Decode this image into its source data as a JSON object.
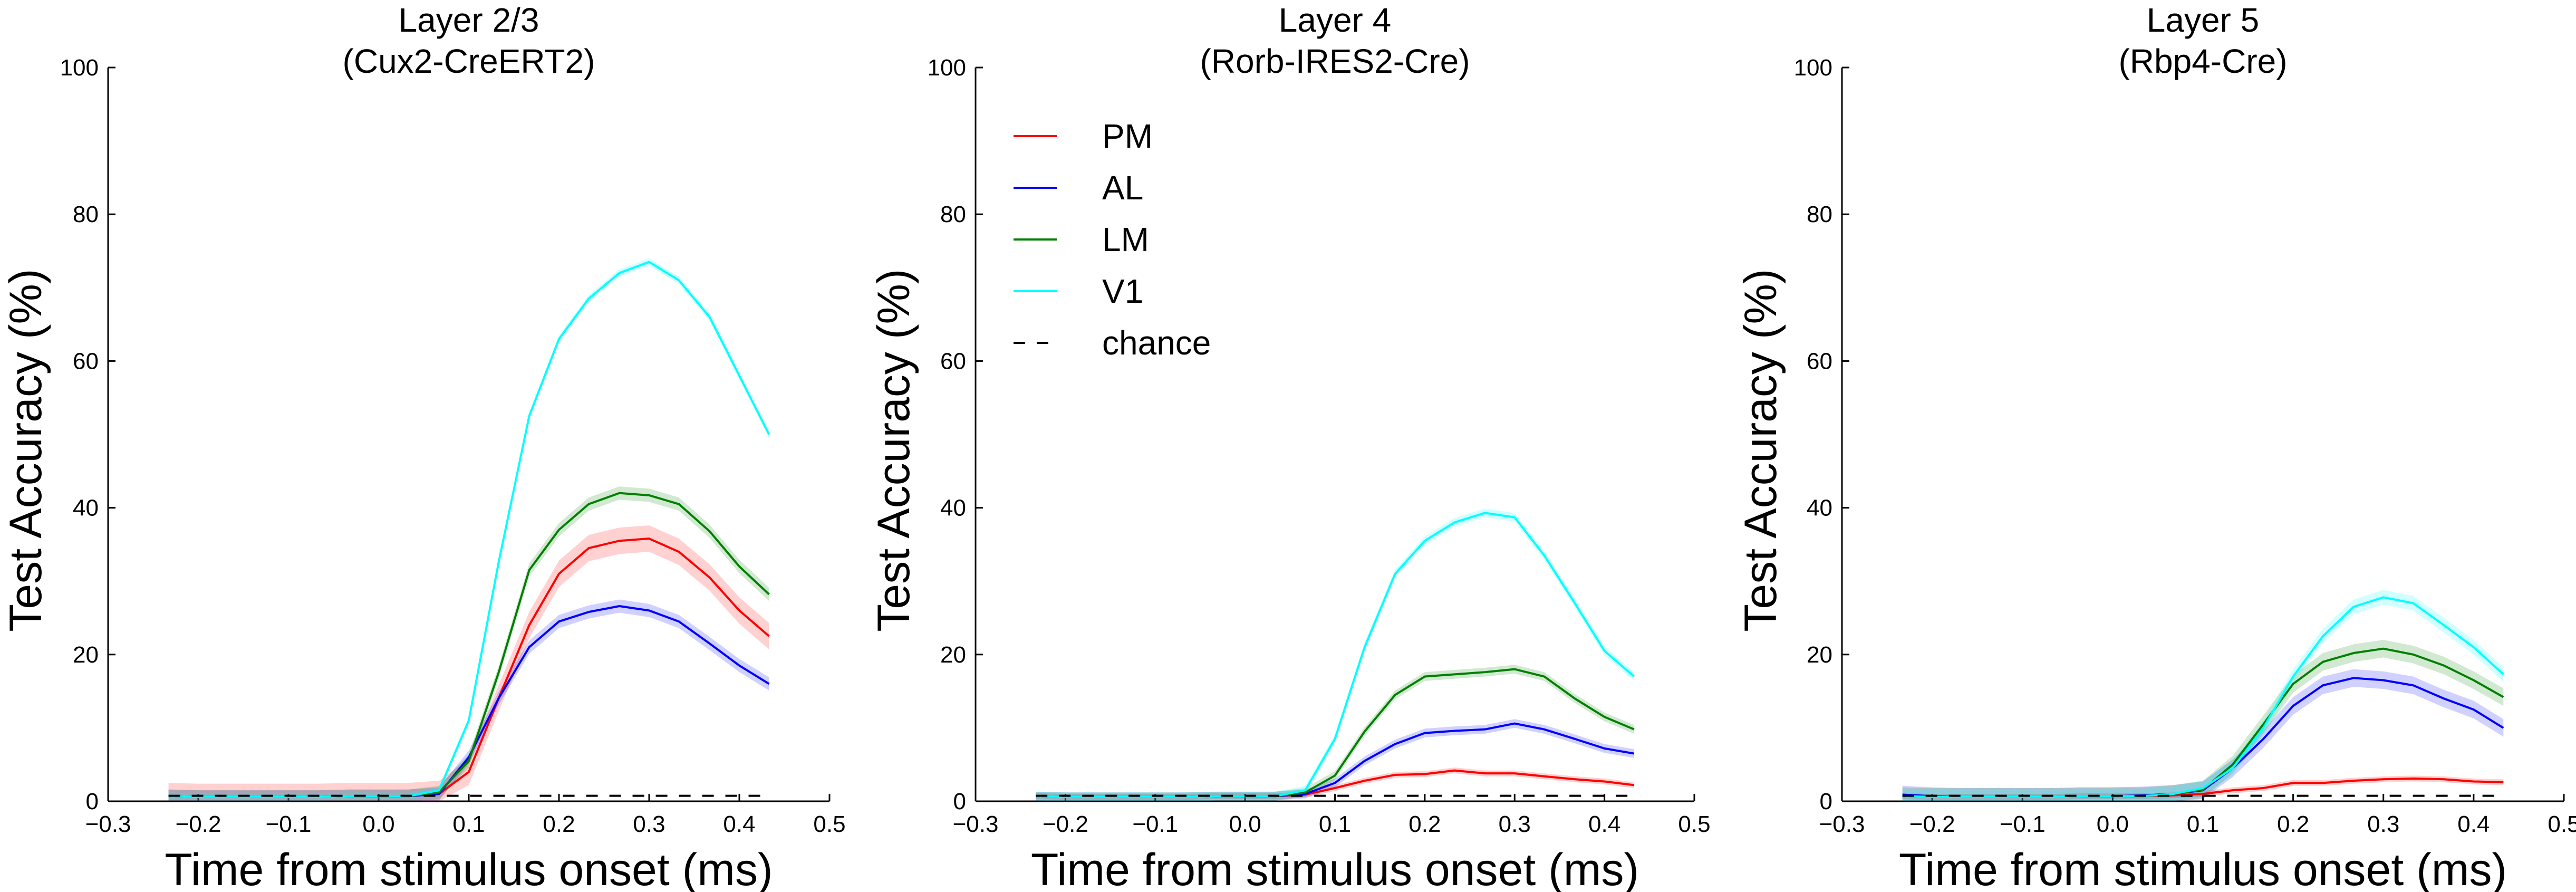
{
  "colors": {
    "PM": "#ff0000",
    "AL": "#0000ff",
    "LM": "#008000",
    "V1": "#00ffff",
    "chance": "#000000"
  },
  "chart_data": [
    {
      "type": "line",
      "title": "Layer 2/3\n(Cux2-CreERT2)",
      "xlabel": "Time from stimulus onset (ms)",
      "ylabel": "Test Accuracy (%)",
      "xlim": [
        -0.3,
        0.5
      ],
      "ylim": [
        0,
        100
      ],
      "xticks": [
        "−0.3",
        "−0.2",
        "−0.1",
        "0.0",
        "0.1",
        "0.2",
        "0.3",
        "0.4",
        "0.5"
      ],
      "yticks": [
        "0",
        "20",
        "40",
        "60",
        "80",
        "100"
      ],
      "x": [
        -0.233,
        -0.2,
        -0.167,
        -0.133,
        -0.1,
        -0.067,
        -0.033,
        0.0,
        0.033,
        0.067,
        0.1,
        0.133,
        0.167,
        0.2,
        0.233,
        0.267,
        0.3,
        0.333,
        0.367,
        0.4,
        0.433
      ],
      "series": [
        {
          "name": "PM",
          "color": "#ff0000",
          "values": [
            0.7,
            0.6,
            0.6,
            0.6,
            0.6,
            0.6,
            0.7,
            0.7,
            0.7,
            1.0,
            4.0,
            14.0,
            24.0,
            31.0,
            34.5,
            35.5,
            35.8,
            34.0,
            30.5,
            26.0,
            22.5
          ],
          "band": 1.8
        },
        {
          "name": "AL",
          "color": "#0000ff",
          "values": [
            0.7,
            0.6,
            0.6,
            0.6,
            0.6,
            0.6,
            0.7,
            0.7,
            0.7,
            1.0,
            6.0,
            14.0,
            21.0,
            24.5,
            25.8,
            26.6,
            26.0,
            24.5,
            21.5,
            18.5,
            16.0
          ],
          "band": 0.9
        },
        {
          "name": "LM",
          "color": "#008000",
          "values": [
            0.7,
            0.6,
            0.6,
            0.6,
            0.6,
            0.6,
            0.7,
            0.7,
            0.7,
            1.2,
            5.5,
            17.5,
            31.5,
            37.0,
            40.5,
            42.0,
            41.7,
            40.5,
            36.8,
            32.0,
            28.2
          ],
          "band": 0.9
        },
        {
          "name": "V1",
          "color": "#00ffff",
          "values": [
            0.7,
            0.6,
            0.6,
            0.6,
            0.6,
            0.6,
            0.7,
            0.7,
            0.7,
            1.5,
            11.0,
            32.5,
            52.5,
            63.0,
            68.5,
            72.0,
            73.5,
            71.0,
            66.0,
            58.0,
            50.0
          ],
          "band": 0.5
        },
        {
          "name": "chance",
          "color": "#000000",
          "dashed": true,
          "values": [
            0.75,
            0.75,
            0.75,
            0.75,
            0.75,
            0.75,
            0.75,
            0.75,
            0.75,
            0.75,
            0.75,
            0.75,
            0.75,
            0.75,
            0.75,
            0.75,
            0.75,
            0.75,
            0.75,
            0.75,
            0.75
          ]
        }
      ]
    },
    {
      "type": "line",
      "title": "Layer 4\n(Rorb-IRES2-Cre)",
      "xlabel": "Time from stimulus onset (ms)",
      "ylabel": "Test Accuracy (%)",
      "xlim": [
        -0.3,
        0.5
      ],
      "ylim": [
        0,
        100
      ],
      "xticks": [
        "−0.3",
        "−0.2",
        "−0.1",
        "0.0",
        "0.1",
        "0.2",
        "0.3",
        "0.4",
        "0.5"
      ],
      "yticks": [
        "0",
        "20",
        "40",
        "60",
        "80",
        "100"
      ],
      "legend": {
        "position": "upper-left",
        "entries": [
          "PM",
          "AL",
          "LM",
          "V1",
          "chance"
        ]
      },
      "x": [
        -0.233,
        -0.2,
        -0.167,
        -0.133,
        -0.1,
        -0.067,
        -0.033,
        0.0,
        0.033,
        0.067,
        0.1,
        0.133,
        0.167,
        0.2,
        0.233,
        0.267,
        0.3,
        0.333,
        0.367,
        0.4,
        0.433
      ],
      "series": [
        {
          "name": "PM",
          "color": "#ff0000",
          "values": [
            0.7,
            0.6,
            0.6,
            0.6,
            0.6,
            0.6,
            0.7,
            0.7,
            0.7,
            0.9,
            1.8,
            2.8,
            3.6,
            3.7,
            4.2,
            3.8,
            3.8,
            3.4,
            3.0,
            2.7,
            2.2
          ],
          "band": 0.4
        },
        {
          "name": "AL",
          "color": "#0000ff",
          "values": [
            0.7,
            0.6,
            0.6,
            0.6,
            0.6,
            0.6,
            0.7,
            0.7,
            0.7,
            1.0,
            2.5,
            5.5,
            7.8,
            9.3,
            9.6,
            9.8,
            10.6,
            9.8,
            8.5,
            7.2,
            6.5
          ],
          "band": 0.6
        },
        {
          "name": "LM",
          "color": "#008000",
          "values": [
            0.7,
            0.6,
            0.6,
            0.6,
            0.6,
            0.6,
            0.7,
            0.7,
            0.7,
            1.2,
            3.5,
            9.5,
            14.5,
            17.0,
            17.3,
            17.6,
            18.0,
            17.0,
            14.0,
            11.5,
            9.8
          ],
          "band": 0.6
        },
        {
          "name": "V1",
          "color": "#00ffff",
          "values": [
            0.7,
            0.6,
            0.6,
            0.6,
            0.6,
            0.6,
            0.7,
            0.7,
            0.7,
            1.5,
            8.5,
            21.0,
            31.0,
            35.5,
            38.0,
            39.3,
            38.7,
            33.5,
            27.0,
            20.5,
            17.0
          ],
          "band": 0.6
        },
        {
          "name": "chance",
          "color": "#000000",
          "dashed": true,
          "values": [
            0.75,
            0.75,
            0.75,
            0.75,
            0.75,
            0.75,
            0.75,
            0.75,
            0.75,
            0.75,
            0.75,
            0.75,
            0.75,
            0.75,
            0.75,
            0.75,
            0.75,
            0.75,
            0.75,
            0.75,
            0.75
          ]
        }
      ]
    },
    {
      "type": "line",
      "title": "Layer 5\n(Rbp4-Cre)",
      "xlabel": "Time from stimulus onset (ms)",
      "ylabel": "Test Accuracy (%)",
      "xlim": [
        -0.3,
        0.5
      ],
      "ylim": [
        0,
        100
      ],
      "xticks": [
        "−0.3",
        "−0.2",
        "−0.1",
        "0.0",
        "0.1",
        "0.2",
        "0.3",
        "0.4",
        "0.5"
      ],
      "yticks": [
        "0",
        "20",
        "40",
        "60",
        "80",
        "100"
      ],
      "x": [
        -0.233,
        -0.2,
        -0.167,
        -0.133,
        -0.1,
        -0.067,
        -0.033,
        0.0,
        0.033,
        0.067,
        0.1,
        0.133,
        0.167,
        0.2,
        0.233,
        0.267,
        0.3,
        0.333,
        0.367,
        0.4,
        0.433
      ],
      "series": [
        {
          "name": "PM",
          "color": "#ff0000",
          "values": [
            0.7,
            0.6,
            0.6,
            0.6,
            0.6,
            0.6,
            0.7,
            0.7,
            0.7,
            0.8,
            1.0,
            1.5,
            1.8,
            2.5,
            2.5,
            2.8,
            3.0,
            3.1,
            3.0,
            2.7,
            2.6
          ],
          "band": 0.4
        },
        {
          "name": "AL",
          "color": "#0000ff",
          "values": [
            0.9,
            0.7,
            0.6,
            0.6,
            0.6,
            0.6,
            0.7,
            0.7,
            0.8,
            1.0,
            1.5,
            4.5,
            8.5,
            13.0,
            15.8,
            16.8,
            16.5,
            15.8,
            14.0,
            12.5,
            10.0
          ],
          "band": 1.2
        },
        {
          "name": "LM",
          "color": "#008000",
          "values": [
            0.7,
            0.6,
            0.6,
            0.6,
            0.6,
            0.6,
            0.7,
            0.7,
            0.7,
            1.0,
            1.6,
            5.0,
            10.5,
            16.0,
            19.0,
            20.2,
            20.8,
            20.0,
            18.5,
            16.5,
            14.2
          ],
          "band": 1.2
        },
        {
          "name": "V1",
          "color": "#00ffff",
          "values": [
            0.7,
            0.6,
            0.6,
            0.6,
            0.6,
            0.6,
            0.7,
            0.7,
            0.7,
            1.0,
            1.8,
            4.5,
            10.0,
            17.0,
            22.5,
            26.5,
            27.8,
            27.0,
            24.0,
            21.0,
            17.3
          ],
          "band": 1.0
        },
        {
          "name": "chance",
          "color": "#000000",
          "dashed": true,
          "values": [
            0.75,
            0.75,
            0.75,
            0.75,
            0.75,
            0.75,
            0.75,
            0.75,
            0.75,
            0.75,
            0.75,
            0.75,
            0.75,
            0.75,
            0.75,
            0.75,
            0.75,
            0.75,
            0.75,
            0.75,
            0.75
          ]
        }
      ]
    }
  ]
}
